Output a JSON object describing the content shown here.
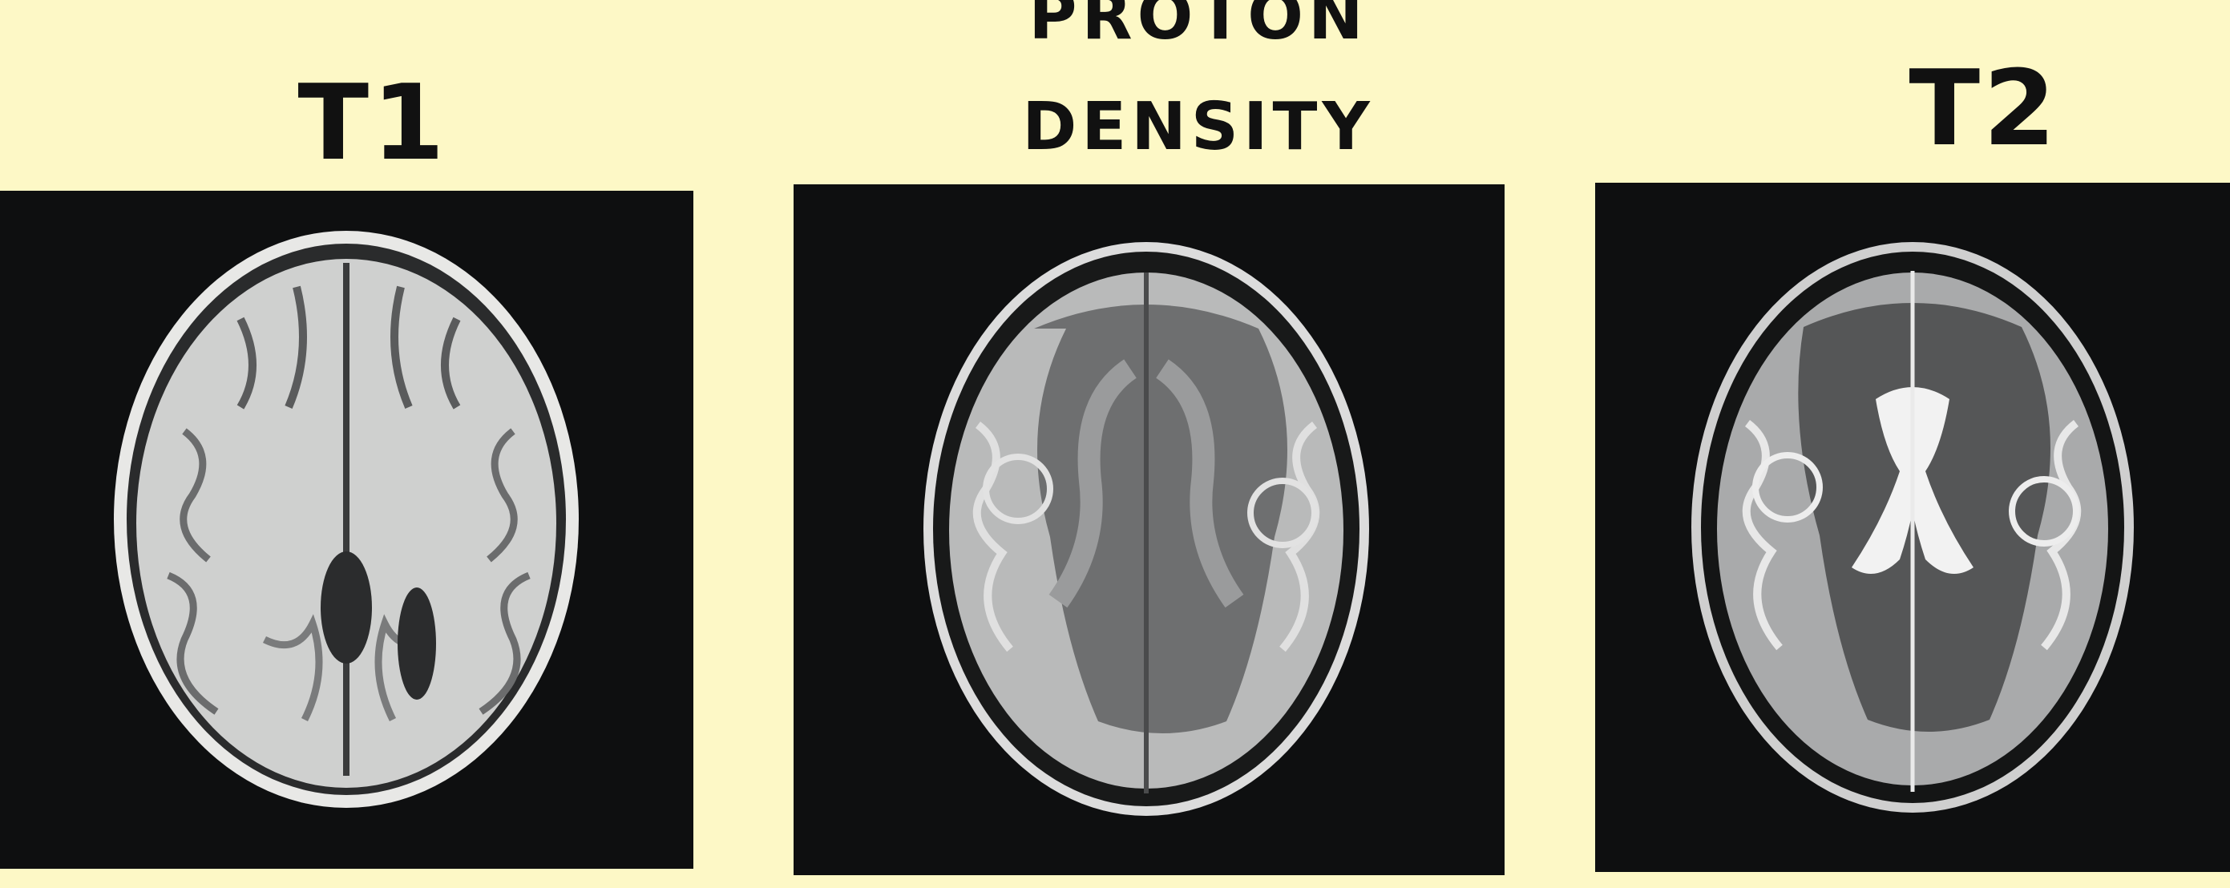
{
  "labels": {
    "t1": "T1",
    "proton_density_line1": "PROTON",
    "proton_density_line2": "DENSITY",
    "t2": "T2"
  },
  "colors": {
    "background": "#fdf8c6",
    "panel": "#0e0f10",
    "label_text": "#111111"
  }
}
